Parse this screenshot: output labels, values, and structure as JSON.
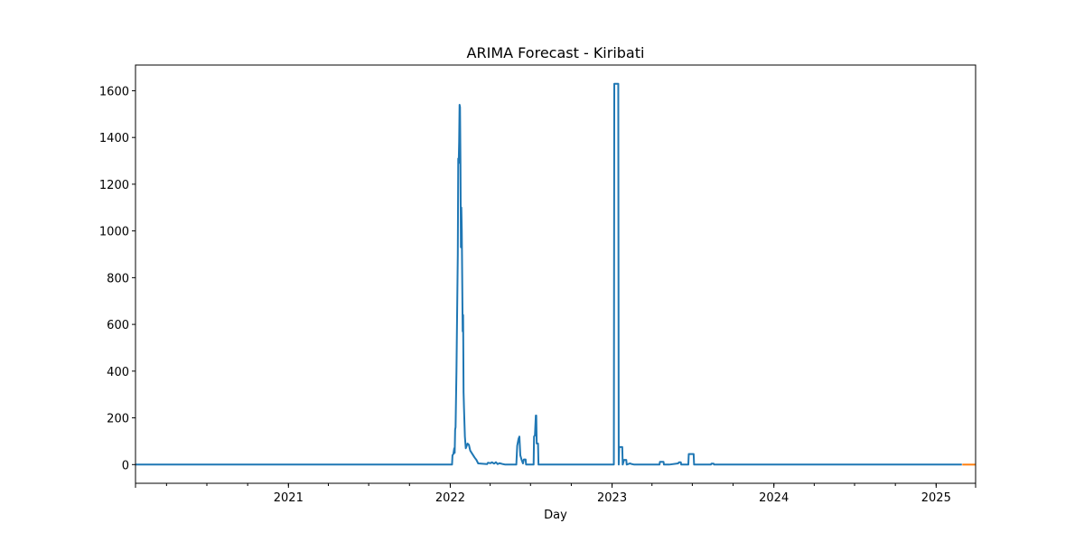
{
  "chart_data": {
    "type": "line",
    "title": "ARIMA Forecast - Kiribati",
    "xlabel": "Day",
    "ylabel": "",
    "xlim": [
      "2020-01-22",
      "2025-03-31"
    ],
    "ylim": [
      -80,
      1710
    ],
    "x_ticks": [
      "2021",
      "2022",
      "2023",
      "2024",
      "2025"
    ],
    "y_ticks": [
      0,
      200,
      400,
      600,
      800,
      1000,
      1200,
      1400,
      1600
    ],
    "grid": false,
    "legend": "none",
    "series": [
      {
        "color": "#1f77b4",
        "points": [
          [
            "2020-01-22",
            0
          ],
          [
            "2022-01-05",
            0
          ],
          [
            "2022-01-06",
            40
          ],
          [
            "2022-01-08",
            45
          ],
          [
            "2022-01-10",
            70
          ],
          [
            "2022-01-11",
            50
          ],
          [
            "2022-01-12",
            150
          ],
          [
            "2022-01-13",
            160
          ],
          [
            "2022-01-15",
            400
          ],
          [
            "2022-01-18",
            900
          ],
          [
            "2022-01-19",
            1310
          ],
          [
            "2022-01-20",
            1290
          ],
          [
            "2022-01-21",
            1380
          ],
          [
            "2022-01-22",
            1540
          ],
          [
            "2022-01-23",
            1530
          ],
          [
            "2022-01-24",
            1300
          ],
          [
            "2022-01-25",
            930
          ],
          [
            "2022-01-26",
            1100
          ],
          [
            "2022-01-27",
            1000
          ],
          [
            "2022-01-29",
            570
          ],
          [
            "2022-01-30",
            640
          ],
          [
            "2022-01-31",
            310
          ],
          [
            "2022-02-01",
            240
          ],
          [
            "2022-02-03",
            120
          ],
          [
            "2022-02-05",
            70
          ],
          [
            "2022-02-07",
            80
          ],
          [
            "2022-02-09",
            90
          ],
          [
            "2022-02-12",
            85
          ],
          [
            "2022-02-15",
            60
          ],
          [
            "2022-02-20",
            45
          ],
          [
            "2022-02-25",
            30
          ],
          [
            "2022-03-01",
            20
          ],
          [
            "2022-03-05",
            5
          ],
          [
            "2022-03-25",
            2
          ],
          [
            "2022-03-27",
            8
          ],
          [
            "2022-04-02",
            6
          ],
          [
            "2022-04-05",
            10
          ],
          [
            "2022-04-10",
            4
          ],
          [
            "2022-04-14",
            10
          ],
          [
            "2022-04-18",
            2
          ],
          [
            "2022-04-22",
            6
          ],
          [
            "2022-04-30",
            2
          ],
          [
            "2022-05-05",
            0
          ],
          [
            "2022-05-30",
            0
          ],
          [
            "2022-06-01",
            80
          ],
          [
            "2022-06-04",
            110
          ],
          [
            "2022-06-06",
            120
          ],
          [
            "2022-06-08",
            40
          ],
          [
            "2022-06-11",
            20
          ],
          [
            "2022-06-14",
            5
          ],
          [
            "2022-06-16",
            22
          ],
          [
            "2022-06-20",
            22
          ],
          [
            "2022-06-21",
            0
          ],
          [
            "2022-07-08",
            0
          ],
          [
            "2022-07-09",
            120
          ],
          [
            "2022-07-11",
            125
          ],
          [
            "2022-07-13",
            210
          ],
          [
            "2022-07-14",
            210
          ],
          [
            "2022-07-15",
            90
          ],
          [
            "2022-07-18",
            90
          ],
          [
            "2022-07-19",
            0
          ],
          [
            "2023-01-05",
            0
          ],
          [
            "2023-01-06",
            1630
          ],
          [
            "2023-01-15",
            1630
          ],
          [
            "2023-01-16",
            0
          ],
          [
            "2023-01-17",
            75
          ],
          [
            "2023-01-24",
            75
          ],
          [
            "2023-01-25",
            0
          ],
          [
            "2023-01-28",
            20
          ],
          [
            "2023-02-02",
            20
          ],
          [
            "2023-02-03",
            0
          ],
          [
            "2023-02-10",
            5
          ],
          [
            "2023-02-15",
            2
          ],
          [
            "2023-02-20",
            0
          ],
          [
            "2023-04-18",
            0
          ],
          [
            "2023-04-19",
            12
          ],
          [
            "2023-04-27",
            12
          ],
          [
            "2023-04-28",
            0
          ],
          [
            "2023-05-10",
            0
          ],
          [
            "2023-05-30",
            5
          ],
          [
            "2023-06-01",
            10
          ],
          [
            "2023-06-05",
            10
          ],
          [
            "2023-06-06",
            0
          ],
          [
            "2023-06-22",
            0
          ],
          [
            "2023-06-23",
            45
          ],
          [
            "2023-07-04",
            45
          ],
          [
            "2023-07-05",
            0
          ],
          [
            "2023-08-12",
            0
          ],
          [
            "2023-08-13",
            4
          ],
          [
            "2023-08-18",
            4
          ],
          [
            "2023-08-19",
            0
          ],
          [
            "2025-02-28",
            0
          ]
        ]
      },
      {
        "color": "#ff7f0e",
        "points": [
          [
            "2025-03-01",
            0
          ],
          [
            "2025-03-31",
            0
          ]
        ]
      }
    ]
  }
}
